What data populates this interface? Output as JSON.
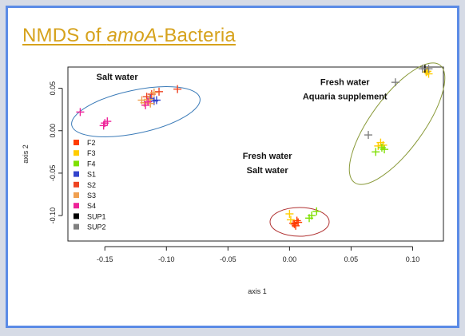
{
  "title": {
    "prefix": "NMDS of ",
    "italic": "amoA",
    "suffix": "-Bacteria"
  },
  "chart_data": {
    "type": "scatter",
    "title": "NMDS of amoA-Bacteria",
    "xlabel": "axis 1",
    "ylabel": "axis 2",
    "xlim": [
      -0.18,
      0.125
    ],
    "ylim": [
      -0.13,
      0.075
    ],
    "xticks": [
      -0.15,
      -0.1,
      -0.05,
      0.0,
      0.05,
      0.1
    ],
    "xtick_labels": [
      "-0.15",
      "-0.10",
      "-0.05",
      "0.00",
      "0.05",
      "0.10"
    ],
    "yticks": [
      -0.1,
      -0.05,
      0.0,
      0.05
    ],
    "ytick_labels": [
      "-0.10",
      "-0.05",
      "0.00",
      "0.05"
    ],
    "grid": false,
    "legend_position": "left",
    "series": [
      {
        "name": "F2",
        "color": "#ff3c00",
        "points": [
          [
            0.005,
            -0.112
          ],
          [
            0.007,
            -0.108
          ],
          [
            0.004,
            -0.11
          ],
          [
            0.006,
            -0.106
          ],
          [
            0.003,
            -0.109
          ]
        ]
      },
      {
        "name": "F3",
        "color": "#ffcc00",
        "points": [
          [
            0.0,
            -0.098
          ],
          [
            0.001,
            -0.105
          ],
          [
            0.072,
            -0.018
          ],
          [
            0.074,
            -0.014
          ],
          [
            0.076,
            -0.017
          ],
          [
            0.112,
            0.07
          ],
          [
            0.113,
            0.067
          ],
          [
            0.111,
            0.069
          ]
        ]
      },
      {
        "name": "F4",
        "color": "#7ee000",
        "points": [
          [
            0.018,
            -0.1
          ],
          [
            0.022,
            -0.095
          ],
          [
            0.016,
            -0.103
          ],
          [
            0.07,
            -0.025
          ],
          [
            0.077,
            -0.022
          ],
          [
            0.075,
            -0.02
          ]
        ]
      },
      {
        "name": "S1",
        "color": "#3344cc",
        "points": [
          [
            -0.11,
            0.035
          ],
          [
            -0.113,
            0.038
          ],
          [
            -0.108,
            0.036
          ]
        ]
      },
      {
        "name": "S2",
        "color": "#ee4422",
        "points": [
          [
            -0.116,
            0.04
          ],
          [
            -0.112,
            0.043
          ],
          [
            -0.106,
            0.046
          ],
          [
            -0.091,
            0.049
          ]
        ]
      },
      {
        "name": "S3",
        "color": "#f0a050",
        "points": [
          [
            -0.118,
            0.033
          ],
          [
            -0.114,
            0.037
          ],
          [
            -0.11,
            0.045
          ],
          [
            -0.113,
            0.032
          ],
          [
            -0.12,
            0.036
          ]
        ]
      },
      {
        "name": "S4",
        "color": "#ee2299",
        "points": [
          [
            -0.17,
            0.022
          ],
          [
            -0.15,
            0.009
          ],
          [
            -0.148,
            0.011
          ],
          [
            -0.151,
            0.006
          ],
          [
            -0.117,
            0.03
          ],
          [
            -0.115,
            0.034
          ]
        ]
      },
      {
        "name": "SUP1",
        "color": "#000000",
        "points": [
          [
            0.11,
            0.073
          ]
        ]
      },
      {
        "name": "SUP2",
        "color": "#808080",
        "points": [
          [
            0.064,
            -0.005
          ],
          [
            0.086,
            0.057
          ],
          [
            0.108,
            0.073
          ],
          [
            0.113,
            0.073
          ]
        ]
      }
    ],
    "annotations": [
      {
        "lines": [
          "Salt water"
        ],
        "x": -0.14,
        "y": 0.06
      },
      {
        "lines": [
          "Fresh water",
          "Aquaria supplement"
        ],
        "x": 0.045,
        "y": 0.054
      },
      {
        "lines": [
          "Fresh water",
          "Salt water"
        ],
        "x": -0.018,
        "y": -0.033
      }
    ]
  }
}
